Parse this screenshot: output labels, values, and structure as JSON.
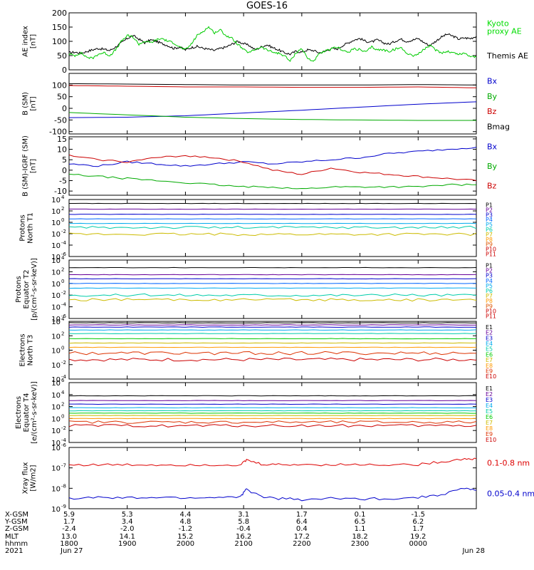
{
  "title": "GOES-16",
  "chart_data": [
    {
      "type": "line",
      "ylabel": [
        "AE index",
        "[nT]"
      ],
      "yscale": "linear",
      "ylim": [
        0,
        200
      ],
      "yticks": [
        0,
        50,
        100,
        150,
        200
      ],
      "ytick_labels": [
        "0",
        "50",
        "100",
        "150",
        "200"
      ],
      "legend": [
        {
          "lines": [
            "Kyoto",
            "proxy AE"
          ],
          "color": "#00dd00"
        },
        {
          "lines": [
            "Themis AE"
          ],
          "color": "#000000"
        }
      ],
      "series": [
        {
          "name": "Themis AE",
          "color": "#000000",
          "x": [
            0.0,
            0.1,
            0.2,
            0.3,
            0.4,
            0.5,
            0.6,
            0.7,
            0.8,
            0.9,
            1.0,
            1.1,
            1.2,
            1.3,
            1.4,
            1.5,
            1.6,
            1.7,
            1.8,
            1.9,
            2.0,
            2.1,
            2.2,
            2.3,
            2.4,
            2.5,
            2.6,
            2.7,
            2.8,
            2.9,
            3.0,
            3.1,
            3.2,
            3.3,
            3.4,
            3.5,
            3.6,
            3.7,
            3.8,
            3.9,
            4.0,
            4.1,
            4.2,
            4.3,
            4.4,
            4.5,
            4.6,
            4.7,
            4.8,
            4.9,
            5.0,
            5.1,
            5.2,
            5.3,
            5.4,
            5.5,
            5.6,
            5.7,
            5.8,
            5.9,
            6.0,
            6.1,
            6.2,
            6.3,
            6.4,
            6.5,
            6.6,
            6.7,
            6.8,
            6.9,
            7.0
          ],
          "y": [
            60,
            62,
            58,
            64,
            70,
            75,
            72,
            68,
            80,
            95,
            110,
            120,
            108,
            95,
            105,
            100,
            92,
            85,
            75,
            80,
            70,
            78,
            82,
            76,
            72,
            68,
            75,
            80,
            90,
            100,
            92,
            85,
            70,
            80,
            88,
            78,
            70,
            60,
            55,
            65,
            62,
            70,
            68,
            60,
            65,
            75,
            72,
            85,
            95,
            105,
            110,
            100,
            98,
            105,
            95,
            90,
            100,
            108,
            100,
            104,
            110,
            96,
            85,
            100,
            115,
            125,
            118,
            108,
            112,
            110,
            118
          ]
        },
        {
          "name": "Kyoto proxy AE",
          "color": "#00cc00",
          "x": [
            0.0,
            0.1,
            0.2,
            0.3,
            0.4,
            0.5,
            0.6,
            0.7,
            0.8,
            0.9,
            1.0,
            1.1,
            1.2,
            1.3,
            1.4,
            1.5,
            1.6,
            1.7,
            1.8,
            1.9,
            2.0,
            2.1,
            2.2,
            2.3,
            2.4,
            2.5,
            2.6,
            2.7,
            2.8,
            2.9,
            3.0,
            3.1,
            3.2,
            3.3,
            3.4,
            3.5,
            3.6,
            3.7,
            3.8,
            3.9,
            4.0,
            4.1,
            4.2,
            4.3,
            4.4,
            4.5,
            4.6,
            4.7,
            4.8,
            4.9,
            5.0,
            5.1,
            5.2,
            5.3,
            5.4,
            5.5,
            5.6,
            5.7,
            5.8,
            5.9,
            6.0,
            6.1,
            6.2,
            6.3,
            6.4,
            6.5,
            6.6,
            6.7,
            6.8,
            6.9,
            7.0
          ],
          "y": [
            55,
            50,
            60,
            45,
            40,
            55,
            60,
            50,
            70,
            100,
            120,
            115,
            90,
            100,
            95,
            105,
            110,
            100,
            95,
            80,
            70,
            90,
            120,
            135,
            150,
            130,
            140,
            120,
            110,
            90,
            70,
            60,
            72,
            80,
            70,
            62,
            58,
            50,
            30,
            60,
            75,
            40,
            30,
            55,
            65,
            72,
            80,
            70,
            60,
            75,
            70,
            62,
            80,
            70,
            70,
            65,
            72,
            78,
            60,
            50,
            55,
            72,
            85,
            70,
            60,
            65,
            60,
            55,
            58,
            48,
            45
          ]
        }
      ]
    },
    {
      "type": "line",
      "ylabel": [
        "B (SM)",
        "[nT]"
      ],
      "yscale": "linear",
      "ylim": [
        -110,
        150
      ],
      "yticks": [
        -100,
        -50,
        0,
        50,
        100
      ],
      "ytick_labels": [
        "-100",
        "-50",
        "0",
        "50",
        "100"
      ],
      "legend": [
        {
          "lines": [
            "Bx"
          ],
          "color": "#0000cc"
        },
        {
          "lines": [
            "By"
          ],
          "color": "#00aa00"
        },
        {
          "lines": [
            "Bz"
          ],
          "color": "#cc0000"
        },
        {
          "lines": [
            "Bmag"
          ],
          "color": "#000000"
        }
      ],
      "series": [
        {
          "name": "Bx",
          "color": "#0000cc",
          "x": [
            0,
            1,
            2,
            3,
            4,
            5,
            6,
            7
          ],
          "y": [
            -40,
            -38,
            -32,
            -20,
            -8,
            5,
            18,
            28
          ]
        },
        {
          "name": "By",
          "color": "#00aa00",
          "x": [
            0,
            1,
            2,
            3,
            4,
            5,
            6,
            7
          ],
          "y": [
            -18,
            -28,
            -38,
            -44,
            -48,
            -50,
            -52,
            -52
          ]
        },
        {
          "name": "Bz",
          "color": "#cc0000",
          "x": [
            0,
            1,
            2,
            3,
            4,
            5,
            6,
            7
          ],
          "y": [
            98,
            95,
            92,
            92,
            90,
            90,
            92,
            88
          ]
        },
        {
          "name": "Bmag",
          "color": "#000000",
          "x": [
            0,
            1,
            2,
            3,
            4,
            5,
            6,
            7
          ],
          "y": [
            106,
            104,
            102,
            100,
            100,
            100,
            102,
            100
          ]
        }
      ]
    },
    {
      "type": "line",
      "ylabel": [
        "B (SM)-IGRF (SM)",
        "[nT]"
      ],
      "yscale": "linear",
      "ylim": [
        -12,
        16
      ],
      "yticks": [
        -10,
        -5,
        0,
        5,
        10,
        15
      ],
      "ytick_labels": [
        "-10",
        "-5",
        "0",
        "5",
        "10",
        "15"
      ],
      "legend": [
        {
          "lines": [
            "Bx"
          ],
          "color": "#0000cc"
        },
        {
          "lines": [
            "By"
          ],
          "color": "#00aa00"
        },
        {
          "lines": [
            "Bz"
          ],
          "color": "#cc0000"
        }
      ],
      "series": [
        {
          "name": "Bx",
          "color": "#0000cc",
          "x": [
            0,
            0.5,
            1,
            1.5,
            2,
            2.5,
            3,
            3.5,
            4,
            4.5,
            5,
            5.5,
            6,
            6.5,
            7
          ],
          "y": [
            3,
            2,
            4,
            3,
            2,
            3,
            4,
            3,
            4,
            5,
            6,
            8,
            9,
            10,
            11
          ]
        },
        {
          "name": "By",
          "color": "#00aa00",
          "x": [
            0,
            0.5,
            1,
            1.5,
            2,
            2.5,
            3,
            3.5,
            4,
            4.5,
            5,
            5.5,
            6,
            6.5,
            7
          ],
          "y": [
            -2,
            -3,
            -4,
            -5,
            -6,
            -7,
            -8,
            -8,
            -9,
            -8,
            -8,
            -8,
            -8,
            -7,
            -7
          ]
        },
        {
          "name": "Bz",
          "color": "#cc0000",
          "x": [
            0,
            0.5,
            1,
            1.5,
            2,
            2.5,
            3,
            3.5,
            4,
            4.5,
            5,
            5.5,
            6,
            6.5,
            7
          ],
          "y": [
            7,
            5,
            4,
            6,
            7,
            6,
            4,
            0,
            -2,
            1,
            -1,
            -2,
            -3,
            -4,
            -5
          ]
        }
      ]
    },
    {
      "type": "line",
      "ylabel": [
        "Protons",
        "North T1"
      ],
      "yscale": "log",
      "ylim_log10": [
        -6,
        4
      ],
      "ytick_powers": [
        "4",
        "2",
        "0",
        "-2",
        "-4",
        "-6"
      ],
      "legend_labels": [
        "P1",
        "P2",
        "P3",
        "P4",
        "P5",
        "P6",
        "P7",
        "P8",
        "P9",
        "P10",
        "P11"
      ],
      "legend_colors": [
        "#000000",
        "#660099",
        "#0000cc",
        "#0066ff",
        "#00aaee",
        "#00ccaa",
        "#ccbb00",
        "#ff9900",
        "#dd5500",
        "#cc0000",
        "#cc0000"
      ],
      "series_log10": [
        3.3,
        2.3,
        1.4,
        0.6,
        -0.2,
        -0.9,
        -2.1
      ]
    },
    {
      "type": "line",
      "ylabel": [
        "Protons",
        "Equator T2",
        "[p/(cm²-s-sr-keV)]"
      ],
      "yscale": "log",
      "ylim_log10": [
        -6,
        4
      ],
      "ytick_powers": [
        "4",
        "2",
        "0",
        "-2",
        "-4",
        "-6"
      ],
      "legend_labels": [
        "P1",
        "P2",
        "P3",
        "P4",
        "P5",
        "P6",
        "P7",
        "P8",
        "P9",
        "P10",
        "P11"
      ],
      "legend_colors": [
        "#000000",
        "#660099",
        "#0000cc",
        "#0066ff",
        "#00aaee",
        "#00ccaa",
        "#ccbb00",
        "#ff9900",
        "#dd5500",
        "#cc0000",
        "#cc0000"
      ],
      "series_log10": [
        2.7,
        1.5,
        0.8,
        0.0,
        -0.8,
        -2.0,
        -2.8
      ]
    },
    {
      "type": "line",
      "ylabel": [
        "Electrons",
        "North T3"
      ],
      "yscale": "log",
      "ylim_log10": [
        -4,
        4
      ],
      "ytick_powers": [
        "4",
        "2",
        "0",
        "-2",
        "-4"
      ],
      "legend_labels": [
        "E1",
        "E2",
        "E3",
        "E4",
        "E5",
        "E6",
        "E7",
        "E8",
        "E9",
        "E10"
      ],
      "legend_colors": [
        "#000000",
        "#660099",
        "#0000cc",
        "#00aaee",
        "#00ccaa",
        "#00cc00",
        "#ccbb00",
        "#ff9900",
        "#dd3300",
        "#cc0000"
      ],
      "series_log10": [
        3.8,
        3.5,
        3.2,
        2.8,
        2.3,
        1.6,
        1.0,
        0.4,
        -0.4,
        -1.3
      ]
    },
    {
      "type": "line",
      "ylabel": [
        "Electrons",
        "Equator T4",
        "[e/(cm²-s-sr-keV)]"
      ],
      "yscale": "log",
      "ylim_log10": [
        -4,
        6
      ],
      "ytick_powers": [
        "6",
        "4",
        "2",
        "0",
        "-2",
        "-4"
      ],
      "legend_labels": [
        "E1",
        "E2",
        "E3",
        "E4",
        "E5",
        "E6",
        "E7",
        "E8",
        "E9",
        "E10"
      ],
      "legend_colors": [
        "#000000",
        "#660099",
        "#0000cc",
        "#00aaee",
        "#00ccaa",
        "#00cc00",
        "#ccbb00",
        "#ff9900",
        "#dd3300",
        "#cc0000"
      ],
      "series_log10": [
        3.8,
        3.0,
        2.4,
        1.8,
        1.3,
        0.9,
        0.5,
        0.0,
        -0.6,
        -1.2
      ]
    },
    {
      "type": "line",
      "ylabel": [
        "Xray flux",
        "[W/m2]"
      ],
      "yscale": "log",
      "ylim_log10": [
        -9,
        -6
      ],
      "ytick_powers": [
        "-6",
        "-7",
        "-8",
        "-9"
      ],
      "legend": [
        {
          "lines": [
            "0.1-0.8 nm"
          ],
          "color": "#dd0000"
        },
        {
          "lines": [
            "0.05-0.4 nm"
          ],
          "color": "#0000cc"
        }
      ],
      "series": [
        {
          "name": "0.1-0.8 nm",
          "color": "#dd0000",
          "x": [
            0,
            0.5,
            1,
            1.5,
            2,
            2.5,
            2.95,
            3.05,
            3.3,
            3.6,
            4,
            4.5,
            5,
            5.5,
            6,
            6.4,
            6.8,
            7
          ],
          "y": [
            -6.85,
            -6.85,
            -6.85,
            -6.85,
            -6.85,
            -6.85,
            -6.85,
            -6.62,
            -6.82,
            -6.84,
            -6.84,
            -6.84,
            -6.84,
            -6.84,
            -6.84,
            -6.7,
            -6.55,
            -6.55
          ]
        },
        {
          "name": "0.05-0.4 nm",
          "color": "#0000cc",
          "x": [
            0,
            0.5,
            1,
            1.5,
            2,
            2.5,
            2.95,
            3.05,
            3.3,
            3.6,
            4,
            4.5,
            5,
            5.5,
            6,
            6.4,
            6.8,
            7
          ],
          "y": [
            -8.5,
            -8.45,
            -8.48,
            -8.45,
            -8.47,
            -8.45,
            -8.4,
            -8.05,
            -8.4,
            -8.5,
            -8.55,
            -8.5,
            -8.52,
            -8.5,
            -8.45,
            -8.3,
            -8.0,
            -8.1
          ]
        }
      ]
    }
  ],
  "xaxis": {
    "tick_hours": [
      0,
      1,
      2,
      3,
      4,
      5,
      6,
      7
    ],
    "rows": [
      {
        "label": "X-GSM",
        "values": [
          "5.9",
          "5.3",
          "4.4",
          "3.1",
          "1.7",
          "0.1",
          "-1.5"
        ]
      },
      {
        "label": "Y-GSM",
        "values": [
          "1.7",
          "3.4",
          "4.8",
          "5.8",
          "6.4",
          "6.5",
          "6.2"
        ]
      },
      {
        "label": "Z-GSM",
        "values": [
          "-2.4",
          "-2.0",
          "-1.2",
          "-0.4",
          "0.4",
          "1.1",
          "1.7"
        ]
      },
      {
        "label": "MLT",
        "values": [
          "13.0",
          "14.1",
          "15.2",
          "16.2",
          "17.2",
          "18.2",
          "19.2"
        ]
      },
      {
        "label": "hhmm",
        "values": [
          "1800",
          "1900",
          "2000",
          "2100",
          "2200",
          "2300",
          "0000"
        ]
      },
      {
        "label": "2021",
        "values": [
          "Jun 27",
          "",
          "",
          "",
          "",
          "",
          "Jun 28"
        ]
      }
    ]
  }
}
